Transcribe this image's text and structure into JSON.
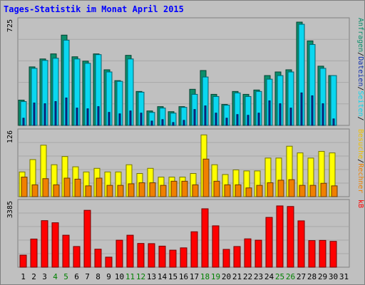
{
  "chart_data": {
    "type": "bar",
    "title": "Tages-Statistik im Monat April 2015",
    "categories": [
      "1",
      "2",
      "3",
      "4",
      "5",
      "6",
      "7",
      "8",
      "9",
      "10",
      "11",
      "12",
      "13",
      "14",
      "15",
      "16",
      "17",
      "18",
      "19",
      "20",
      "21",
      "22",
      "23",
      "24",
      "25",
      "26",
      "27",
      "28",
      "29",
      "30",
      "31"
    ],
    "weekend_days": [
      4,
      5,
      11,
      12,
      18,
      19,
      25,
      26
    ],
    "panels": [
      {
        "ymax_label": "725",
        "ymax": 725,
        "series": [
          {
            "name": "Anfragen",
            "color": "#0b8f6c",
            "values": [
              175,
              405,
              460,
              495,
              625,
              475,
              445,
              495,
              385,
              310,
              485,
              235,
              100,
              130,
              95,
              130,
              250,
              380,
              215,
              145,
              235,
              215,
              245,
              345,
              370,
              385,
              715,
              585,
              410,
              345,
              0
            ]
          },
          {
            "name": "Dateien",
            "color": "#0ad7f0",
            "values": [
              165,
              395,
              450,
              465,
              590,
              460,
              430,
              490,
              370,
              305,
              460,
              230,
              90,
              120,
              85,
              125,
              215,
              335,
              200,
              140,
              225,
              200,
              235,
              320,
              345,
              370,
              700,
              560,
              395,
              345,
              0
            ]
          },
          {
            "name": "Seiten",
            "color": "#1030ad",
            "values": [
              50,
              155,
              150,
              165,
              190,
              120,
              115,
              130,
              90,
              80,
              100,
              85,
              30,
              40,
              20,
              35,
              110,
              135,
              85,
              50,
              75,
              70,
              85,
              170,
              150,
              120,
              225,
              205,
              150,
              45,
              0
            ]
          }
        ],
        "right_label": [
          {
            "text": "Anfragen",
            "color": "#0b8f6c"
          },
          {
            "text": "/",
            "color": "#000000"
          },
          {
            "text": "Dateien",
            "color": "#1030ad"
          },
          {
            "text": "/",
            "color": "#000000"
          },
          {
            "text": "Seiten",
            "color": "#0ad7f0"
          },
          {
            "text": "/",
            "color": "#000000"
          }
        ]
      },
      {
        "ymax_label": "126",
        "ymax": 126,
        "series": [
          {
            "name": "Besuche",
            "color": "#ffff00",
            "values": [
              48,
              72,
              100,
              62,
              78,
              58,
              48,
              55,
              48,
              48,
              62,
              45,
              55,
              38,
              38,
              38,
              45,
              120,
              62,
              43,
              52,
              50,
              50,
              75,
              75,
              98,
              85,
              75,
              88,
              85,
              0
            ]
          },
          {
            "name": "Rechner",
            "color": "#f08000",
            "values": [
              38,
              23,
              35,
              23,
              36,
              34,
              21,
              36,
              22,
              22,
              25,
              27,
              27,
              22,
              30,
              30,
              23,
              73,
              30,
              23,
              23,
              17,
              22,
              27,
              32,
              33,
              22,
              22,
              26,
              21,
              0
            ]
          }
        ],
        "right_label": [
          {
            "text": "Besuche",
            "color": "#f0c000"
          },
          {
            "text": "/",
            "color": "#000000"
          },
          {
            "text": "Rechner",
            "color": "#f08000"
          }
        ]
      },
      {
        "ymax_label": "3385",
        "ymax": 3385,
        "series": [
          {
            "name": "kB",
            "color": "#ff0000",
            "values": [
              630,
              1470,
              2430,
              2320,
              1670,
              1080,
              2970,
              940,
              525,
              1410,
              1670,
              1240,
              1230,
              1100,
              890,
              1010,
              1850,
              3050,
              2160,
              930,
              1080,
              1480,
              1410,
              2600,
              3200,
              3170,
              2420,
              1390,
              1400,
              1350,
              0
            ]
          }
        ],
        "right_label": [
          {
            "text": "kB",
            "color": "#ff0000"
          }
        ]
      }
    ]
  }
}
